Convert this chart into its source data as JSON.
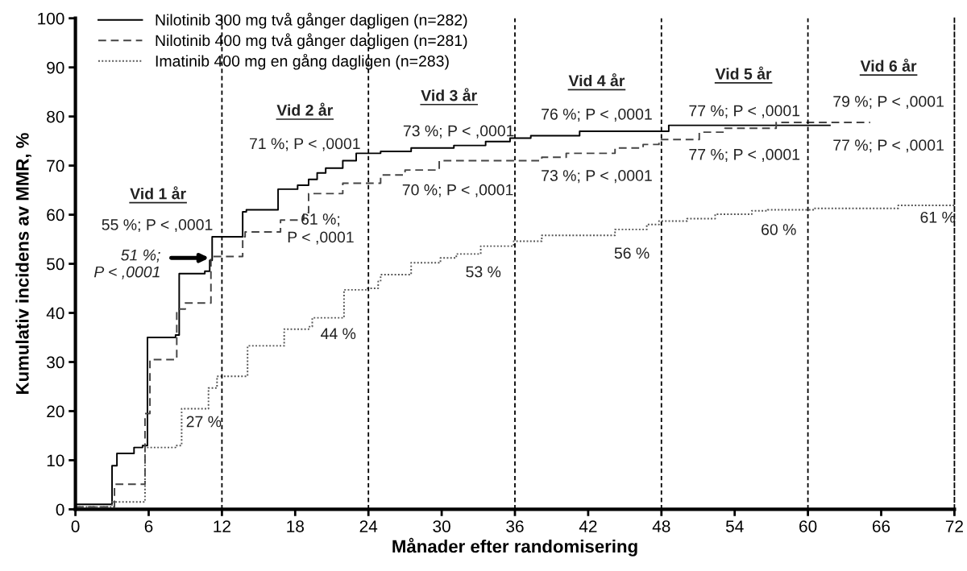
{
  "chart_data": {
    "type": "step",
    "xlabel": "Månader efter randomisering",
    "ylabel": "Kumulativ incidens av MMR, %",
    "xlim": [
      0,
      72
    ],
    "ylim": [
      0,
      100
    ],
    "xticks": [
      0,
      6,
      12,
      18,
      24,
      30,
      36,
      42,
      48,
      54,
      60,
      66,
      72
    ],
    "yticks": [
      0,
      10,
      20,
      30,
      40,
      50,
      60,
      70,
      80,
      90,
      100
    ],
    "grid": false,
    "legend": "top left",
    "marker": "none",
    "series": [
      {
        "name": "Nilotinib 300 mg två gånger dagligen (n=282)",
        "color": "#000000",
        "line_style": "solid",
        "x": [
          0,
          2.8,
          3.0,
          3.4,
          4.8,
          5.5,
          5.9,
          8.2,
          8.5,
          10.6,
          11.0,
          11.2,
          13.4,
          13.7,
          14.0,
          16.1,
          16.6,
          18.2,
          19.1,
          19.8,
          20.5,
          21.9,
          23.0,
          25.0,
          27.5,
          31.0,
          33.6,
          35.6,
          37.3,
          41.3,
          48.6,
          61.8
        ],
        "values": [
          1,
          1,
          8.9,
          11.4,
          12.6,
          13,
          35,
          35.5,
          48,
          48.5,
          50.7,
          55.5,
          55.5,
          60.6,
          61,
          61,
          65.2,
          66,
          67.2,
          68.5,
          69.5,
          71,
          72.5,
          72.9,
          73.6,
          74.1,
          74.9,
          75.6,
          76.1,
          77,
          78.2,
          78.2
        ]
      },
      {
        "name": "Nilotinib 400 mg två gånger dagligen (n=281)",
        "color": "#444444",
        "line_style": "dashed",
        "x": [
          0,
          3.2,
          5.7,
          6.1,
          8.3,
          9.0,
          11.1,
          13.7,
          13.9,
          16.8,
          18.7,
          19.1,
          21.9,
          25.0,
          27.0,
          29.8,
          38.2,
          40.2,
          44.2,
          46.5,
          47.8,
          48.0,
          51.1,
          53.2,
          57.4,
          65.1
        ],
        "values": [
          0.5,
          5.1,
          19.5,
          30.5,
          40.8,
          42,
          51.5,
          55.5,
          56.5,
          58.9,
          60.4,
          64.3,
          66.4,
          68.1,
          69.1,
          71,
          71.7,
          72.5,
          73.6,
          74.3,
          75.1,
          75.3,
          76.8,
          77.6,
          78.8,
          78.8
        ]
      },
      {
        "name": "Imatinib 400 mg en gång dagligen (n=283)",
        "color": "#555555",
        "line_style": "dotted",
        "x": [
          0,
          3.0,
          5.7,
          8.2,
          8.7,
          10.9,
          11.6,
          14.1,
          17.1,
          19.1,
          19.4,
          22.0,
          23.8,
          24.8,
          25.0,
          27.5,
          29.9,
          31.2,
          33.2,
          35.9,
          38.2,
          44.2,
          46.8,
          47.8,
          50.1,
          52.4,
          55.4,
          56.7,
          60.5,
          67.4,
          72.0
        ],
        "values": [
          0.5,
          1.5,
          12.6,
          13,
          20.5,
          24.7,
          27.1,
          33.3,
          36.7,
          37.2,
          39,
          44.7,
          45,
          46.4,
          47.8,
          50.2,
          51.2,
          52,
          53.6,
          54.6,
          55.8,
          57,
          58,
          58.7,
          59.2,
          60.1,
          60.8,
          61,
          61.3,
          61.9,
          61.9
        ]
      }
    ],
    "ref_lines": [
      {
        "axis": "x",
        "value": 12,
        "color": "#000000",
        "line_style": "dashed"
      },
      {
        "axis": "x",
        "value": 24,
        "color": "#000000",
        "line_style": "dashed"
      },
      {
        "axis": "x",
        "value": 36,
        "color": "#000000",
        "line_style": "dashed"
      },
      {
        "axis": "x",
        "value": 48,
        "color": "#000000",
        "line_style": "dashed"
      },
      {
        "axis": "x",
        "value": 60,
        "color": "#000000",
        "line_style": "dashed"
      }
    ],
    "annotations": [
      "Vid 1 år",
      "Vid 2 år",
      "Vid 3 år",
      "Vid 4 år",
      "Vid 5 år",
      "Vid 6 år",
      "55 %; P < ,0001",
      "71 %; P < ,0001",
      "61 %;\nP < ,0001",
      "44 %",
      "27 %",
      "73 %; P < ,0001",
      "70 %; P < ,0001",
      "53 %",
      "76 %; P < ,0001",
      "73 %; P < ,0001",
      "56 %",
      "77 %; P < ,0001",
      "77 %; P < ,0001",
      "60 %",
      "79 %; P < ,0001",
      "77 %; P < ,0001",
      "61 %",
      "51 %;\nP < ,0001"
    ]
  }
}
